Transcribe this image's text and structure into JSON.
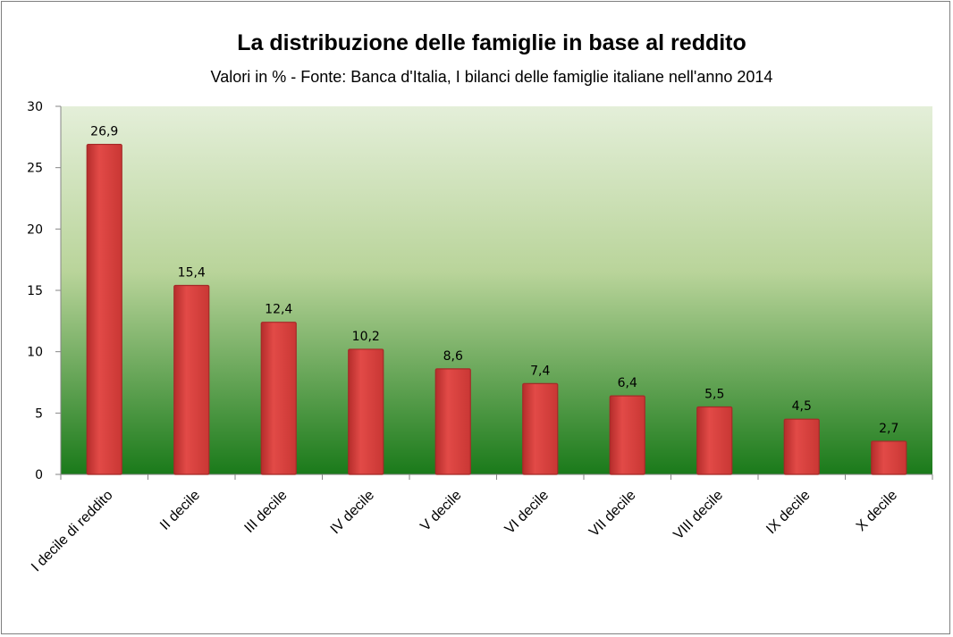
{
  "chart_data": {
    "type": "bar",
    "title": "La distribuzione delle famiglie in base al reddito",
    "subtitle": "Valori in % - Fonte: Banca d'Italia, I bilanci delle famiglie italiane nell'anno 2014",
    "categories": [
      "I decile di reddito",
      "II decile",
      "III decile",
      "IV decile",
      "V decile",
      "VI decile",
      "VII decile",
      "VIII decile",
      "IX decile",
      "X decile"
    ],
    "values": [
      26.9,
      15.4,
      12.4,
      10.2,
      8.6,
      7.4,
      6.4,
      5.5,
      4.5,
      2.7
    ],
    "data_labels": [
      "26,9",
      "15,4",
      "12,4",
      "10,2",
      "8,6",
      "7,4",
      "6,4",
      "5,5",
      "4,5",
      "2,7"
    ],
    "ylim": [
      0,
      30
    ],
    "yticks": [
      "0",
      "5",
      "10",
      "15",
      "20",
      "25",
      "30"
    ],
    "xlabel": "",
    "ylabel": "",
    "grid": false,
    "legend": "none",
    "colors": {
      "bar": "#d9403e",
      "bar_edge": "#a52a28",
      "plot_top": "#e4efd9",
      "plot_bottom": "#1a7a1a"
    }
  }
}
